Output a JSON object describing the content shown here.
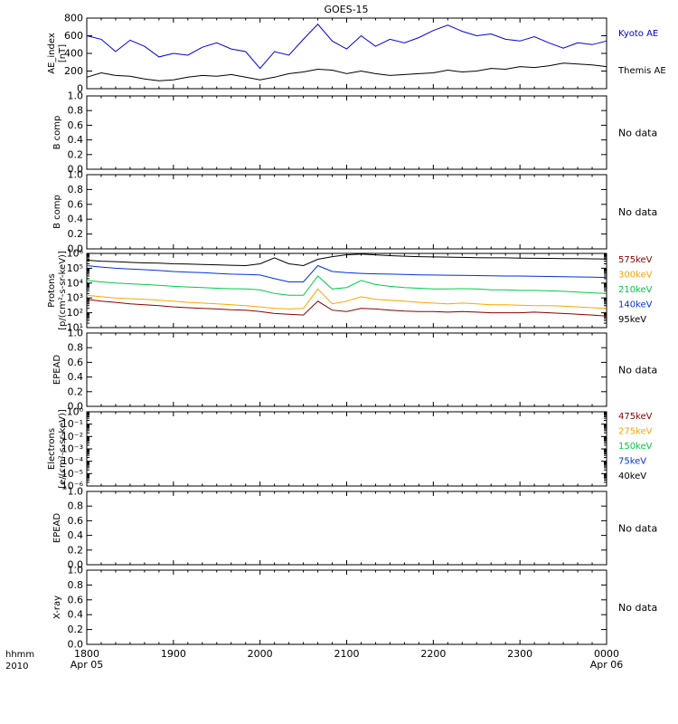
{
  "title": "GOES-15",
  "time_axis": {
    "corner_top": "hhmm",
    "corner_bottom": "2010",
    "ticks": [
      {
        "top": "1800",
        "bottom": "Apr 05"
      },
      {
        "top": "1900",
        "bottom": ""
      },
      {
        "top": "2000",
        "bottom": ""
      },
      {
        "top": "2100",
        "bottom": ""
      },
      {
        "top": "2200",
        "bottom": ""
      },
      {
        "top": "2300",
        "bottom": ""
      },
      {
        "top": "0000",
        "bottom": "Apr 06"
      }
    ]
  },
  "no_data_label": "No data",
  "panels": [
    {
      "ylabel": [
        "AE_index",
        "[nT]"
      ],
      "yticks": [
        "0",
        "200",
        "400",
        "600",
        "800"
      ]
    },
    {
      "ylabel": [
        "B comp"
      ],
      "yticks": [
        "0.0",
        "0.2",
        "0.4",
        "0.6",
        "0.8",
        "1.0"
      ]
    },
    {
      "ylabel": [
        "B comp"
      ],
      "yticks": [
        "0.0",
        "0.2",
        "0.4",
        "0.6",
        "0.8",
        "1.0"
      ]
    },
    {
      "ylabel": [
        "Protons",
        "[p/(cm²-s-sr-keV)]"
      ],
      "yticks": [
        "10¹",
        "10²",
        "10³",
        "10⁴",
        "10⁵",
        "10⁶"
      ]
    },
    {
      "ylabel": [
        "EPEAD"
      ],
      "yticks": [
        "0.0",
        "0.2",
        "0.4",
        "0.6",
        "0.8",
        "1.0"
      ]
    },
    {
      "ylabel": [
        "Electrons",
        "[e/(cm²-s-sr-keV)]"
      ],
      "yticks": [
        "10⁻⁶",
        "10⁻⁵",
        "10⁻⁴",
        "10⁻³",
        "10⁻²",
        "10⁻¹",
        "10⁰"
      ]
    },
    {
      "ylabel": [
        "EPEAD"
      ],
      "yticks": [
        "0.0",
        "0.2",
        "0.4",
        "0.6",
        "0.8",
        "1.0"
      ]
    },
    {
      "ylabel": [
        "X-ray"
      ],
      "yticks": [
        "0.0",
        "0.2",
        "0.4",
        "0.6",
        "0.8",
        "1.0"
      ]
    }
  ],
  "colors": {
    "kyoto": "#0000dd",
    "themis": "#000000",
    "e575": "#8b0000",
    "e300": "#ffa500",
    "e210": "#00cc44",
    "e140": "#0033dd",
    "e95": "#000000",
    "e475": "#8b0000",
    "e275": "#ffa500",
    "e150": "#00cc44",
    "e75": "#0033dd",
    "e40": "#000000"
  },
  "legends": {
    "ae": [
      {
        "name": "Kyoto AE",
        "color": "#0000dd"
      },
      {
        "name": "Themis AE",
        "color": "#000000"
      }
    ],
    "protons": [
      {
        "name": "575keV",
        "color": "#8b0000"
      },
      {
        "name": "300keV",
        "color": "#ffa500"
      },
      {
        "name": "210keV",
        "color": "#00cc44"
      },
      {
        "name": "140keV",
        "color": "#0033dd"
      },
      {
        "name": "95keV",
        "color": "#000000"
      }
    ],
    "electrons": [
      {
        "name": "475keV",
        "color": "#8b0000"
      },
      {
        "name": "275keV",
        "color": "#ffa500"
      },
      {
        "name": "150keV",
        "color": "#00cc44"
      },
      {
        "name": "75keV",
        "color": "#0033dd"
      },
      {
        "name": "40keV",
        "color": "#000000"
      }
    ]
  },
  "chart_data": [
    {
      "type": "line",
      "title": "GOES-15",
      "ylabel": "AE_index [nT]",
      "ylim": [
        0,
        800
      ],
      "x": [
        "18:00",
        "18:10",
        "18:20",
        "18:30",
        "18:40",
        "18:50",
        "19:00",
        "19:10",
        "19:20",
        "19:30",
        "19:40",
        "19:50",
        "20:00",
        "20:10",
        "20:20",
        "20:30",
        "20:40",
        "20:50",
        "21:00",
        "21:10",
        "21:20",
        "21:30",
        "21:40",
        "21:50",
        "22:00",
        "22:10",
        "22:20",
        "22:30",
        "22:40",
        "22:50",
        "23:00",
        "23:10",
        "23:20",
        "23:30",
        "23:40",
        "23:50",
        "00:00"
      ],
      "series": [
        {
          "name": "Kyoto AE",
          "values": [
            600,
            560,
            420,
            550,
            480,
            360,
            400,
            380,
            470,
            520,
            450,
            420,
            230,
            420,
            380,
            560,
            730,
            540,
            450,
            600,
            480,
            560,
            520,
            580,
            660,
            720,
            650,
            600,
            620,
            560,
            540,
            590,
            520,
            460,
            520,
            500,
            540
          ]
        },
        {
          "name": "Themis AE",
          "values": [
            130,
            180,
            150,
            140,
            110,
            90,
            100,
            130,
            150,
            140,
            160,
            130,
            100,
            130,
            170,
            190,
            220,
            210,
            170,
            200,
            170,
            150,
            160,
            170,
            180,
            210,
            190,
            200,
            230,
            220,
            250,
            240,
            260,
            290,
            280,
            270,
            250
          ]
        }
      ]
    },
    {
      "type": "line",
      "ylabel": "B comp",
      "ylim": [
        0,
        1
      ],
      "series": []
    },
    {
      "type": "line",
      "ylabel": "B comp",
      "ylim": [
        0,
        1
      ],
      "series": []
    },
    {
      "type": "line",
      "ylabel": "Protons [p/(cm2-s-sr-keV)]",
      "ylim": [
        10,
        1000000
      ],
      "log_scale": true,
      "x": [
        "18:00",
        "18:10",
        "18:20",
        "18:30",
        "18:40",
        "18:50",
        "19:00",
        "19:10",
        "19:20",
        "19:30",
        "19:40",
        "19:50",
        "20:00",
        "20:10",
        "20:20",
        "20:30",
        "20:40",
        "20:50",
        "21:00",
        "21:10",
        "21:20",
        "21:30",
        "21:40",
        "21:50",
        "22:00",
        "22:10",
        "22:20",
        "22:30",
        "22:40",
        "22:50",
        "23:00",
        "23:10",
        "23:20",
        "23:30",
        "23:40",
        "23:50",
        "00:00"
      ],
      "series": [
        {
          "name": "575keV",
          "values": [
            800,
            600,
            500,
            400,
            350,
            300,
            250,
            220,
            200,
            180,
            160,
            150,
            120,
            90,
            80,
            70,
            600,
            150,
            120,
            200,
            180,
            150,
            130,
            120,
            120,
            110,
            120,
            110,
            100,
            100,
            100,
            110,
            100,
            90,
            80,
            70,
            60
          ]
        },
        {
          "name": "300keV",
          "values": [
            1500,
            1200,
            1000,
            900,
            800,
            700,
            600,
            500,
            450,
            400,
            350,
            300,
            250,
            200,
            180,
            200,
            4000,
            400,
            600,
            1200,
            800,
            700,
            600,
            500,
            450,
            400,
            450,
            400,
            350,
            350,
            320,
            300,
            300,
            280,
            250,
            220,
            200
          ]
        },
        {
          "name": "210keV",
          "values": [
            15000,
            12000,
            10000,
            9000,
            8000,
            7000,
            6000,
            5500,
            5000,
            4500,
            4200,
            4000,
            3500,
            2000,
            1500,
            1500,
            30000,
            4000,
            5000,
            15000,
            8000,
            6000,
            5000,
            4500,
            4000,
            4000,
            4200,
            4000,
            3500,
            3500,
            3200,
            3200,
            3000,
            2800,
            2500,
            2200,
            2000
          ]
        },
        {
          "name": "140keV",
          "values": [
            150000,
            120000,
            100000,
            90000,
            80000,
            70000,
            60000,
            55000,
            50000,
            45000,
            40000,
            38000,
            35000,
            20000,
            12000,
            12000,
            150000,
            60000,
            50000,
            45000,
            42000,
            40000,
            38000,
            36000,
            35000,
            34000,
            33000,
            32000,
            31000,
            30000,
            30000,
            29000,
            28000,
            27000,
            26000,
            25000,
            24000
          ]
        },
        {
          "name": "95keV",
          "values": [
            350000,
            300000,
            280000,
            250000,
            230000,
            220000,
            200000,
            190000,
            180000,
            170000,
            160000,
            150000,
            200000,
            500000,
            200000,
            150000,
            400000,
            600000,
            800000,
            900000,
            800000,
            700000,
            650000,
            600000,
            580000,
            560000,
            540000,
            520000,
            500000,
            500000,
            480000,
            470000,
            460000,
            450000,
            440000,
            430000,
            420000
          ]
        }
      ]
    },
    {
      "type": "line",
      "ylabel": "EPEAD",
      "ylim": [
        0,
        1
      ],
      "series": []
    },
    {
      "type": "line",
      "ylabel": "Electrons [e/(cm2-s-sr-keV)]",
      "ylim": [
        1e-06,
        1
      ],
      "log_scale": true,
      "series": []
    },
    {
      "type": "line",
      "ylabel": "EPEAD",
      "ylim": [
        0,
        1
      ],
      "series": []
    },
    {
      "type": "line",
      "ylabel": "X-ray",
      "ylim": [
        0,
        1
      ],
      "series": []
    }
  ]
}
